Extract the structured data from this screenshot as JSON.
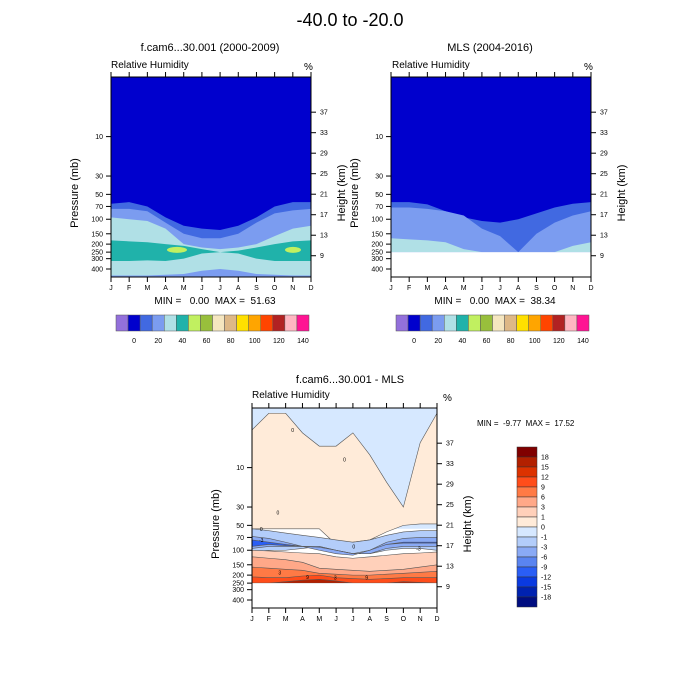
{
  "figure": {
    "title": "-40.0 to -20.0"
  },
  "chart_data": [
    {
      "type": "heatmap",
      "title": "f.cam6...30.001 (2000-2009)",
      "left_string": "Relative Humidity",
      "right_string": "%",
      "xlabel": "",
      "ylabel": "Pressure (mb)",
      "y2label": "Height (km)",
      "x_ticks": [
        "J",
        "F",
        "M",
        "A",
        "M",
        "J",
        "J",
        "A",
        "S",
        "O",
        "N",
        "D"
      ],
      "y_ticks": [
        "10",
        "30",
        "50",
        "70",
        "100",
        "150",
        "200",
        "250",
        "300",
        "400"
      ],
      "y2_ticks": [
        "37",
        "33",
        "29",
        "25",
        "21",
        "17",
        "13",
        "9"
      ],
      "stats": "MIN =   0.00  MAX =  51.63",
      "colorbar_labels": [
        "0",
        "20",
        "40",
        "60",
        "80",
        "100",
        "120",
        "140"
      ],
      "colorbar_colors": [
        "#9370db",
        "#0000cd",
        "#4169e1",
        "#7b9cf0",
        "#b0e0e6",
        "#20b2aa",
        "#c1f060",
        "#98bf3c",
        "#f5e6c0",
        "#deb887",
        "#ffe000",
        "#ffa500",
        "#ff4500",
        "#b22222",
        "#ffb6c1",
        "#ff1493"
      ]
    },
    {
      "type": "heatmap",
      "title": "MLS (2004-2016)",
      "left_string": "Relative Humidity",
      "right_string": "%",
      "xlabel": "",
      "ylabel": "Pressure (mb)",
      "y2label": "Height (km)",
      "x_ticks": [
        "J",
        "F",
        "M",
        "A",
        "M",
        "J",
        "J",
        "A",
        "S",
        "O",
        "N",
        "D"
      ],
      "y_ticks": [
        "10",
        "30",
        "50",
        "70",
        "100",
        "150",
        "200",
        "250",
        "300",
        "400"
      ],
      "y2_ticks": [
        "37",
        "33",
        "29",
        "25",
        "21",
        "17",
        "13",
        "9"
      ],
      "stats": "MIN =   0.00  MAX =  38.34",
      "colorbar_labels": [
        "0",
        "20",
        "40",
        "60",
        "80",
        "100",
        "120",
        "140"
      ],
      "colorbar_colors": [
        "#9370db",
        "#0000cd",
        "#4169e1",
        "#7b9cf0",
        "#b0e0e6",
        "#20b2aa",
        "#c1f060",
        "#98bf3c",
        "#f5e6c0",
        "#deb887",
        "#ffe000",
        "#ffa500",
        "#ff4500",
        "#b22222",
        "#ffb6c1",
        "#ff1493"
      ]
    },
    {
      "type": "heatmap",
      "title": "f.cam6...30.001 - MLS",
      "left_string": "Relative Humidity",
      "right_string": "%",
      "xlabel": "",
      "ylabel": "Pressure (mb)",
      "y2label": "Height (km)",
      "x_ticks": [
        "J",
        "F",
        "M",
        "A",
        "M",
        "J",
        "J",
        "A",
        "S",
        "O",
        "N",
        "D"
      ],
      "y_ticks": [
        "10",
        "30",
        "50",
        "70",
        "100",
        "150",
        "200",
        "250",
        "300",
        "400"
      ],
      "y2_ticks": [
        "37",
        "33",
        "29",
        "25",
        "21",
        "17",
        "13",
        "9"
      ],
      "stats": "MIN =  -9.77  MAX =  17.52",
      "colorbar_labels": [
        "18",
        "15",
        "12",
        "9",
        "6",
        "3",
        "1",
        "0",
        "-1",
        "-3",
        "-6",
        "-9",
        "-12",
        "-15",
        "-18"
      ],
      "colorbar_colors": [
        "#800000",
        "#b22000",
        "#dc3200",
        "#ff4d1a",
        "#ff7a45",
        "#ffa888",
        "#ffd0ba",
        "#ffebd9",
        "#d6e8ff",
        "#b3cdfa",
        "#8aaaf5",
        "#5a84f0",
        "#2a5ef5",
        "#0a3ae0",
        "#0022b0",
        "#000d80"
      ],
      "contour_labels": [
        "0",
        "-3",
        "3",
        "9"
      ]
    }
  ]
}
